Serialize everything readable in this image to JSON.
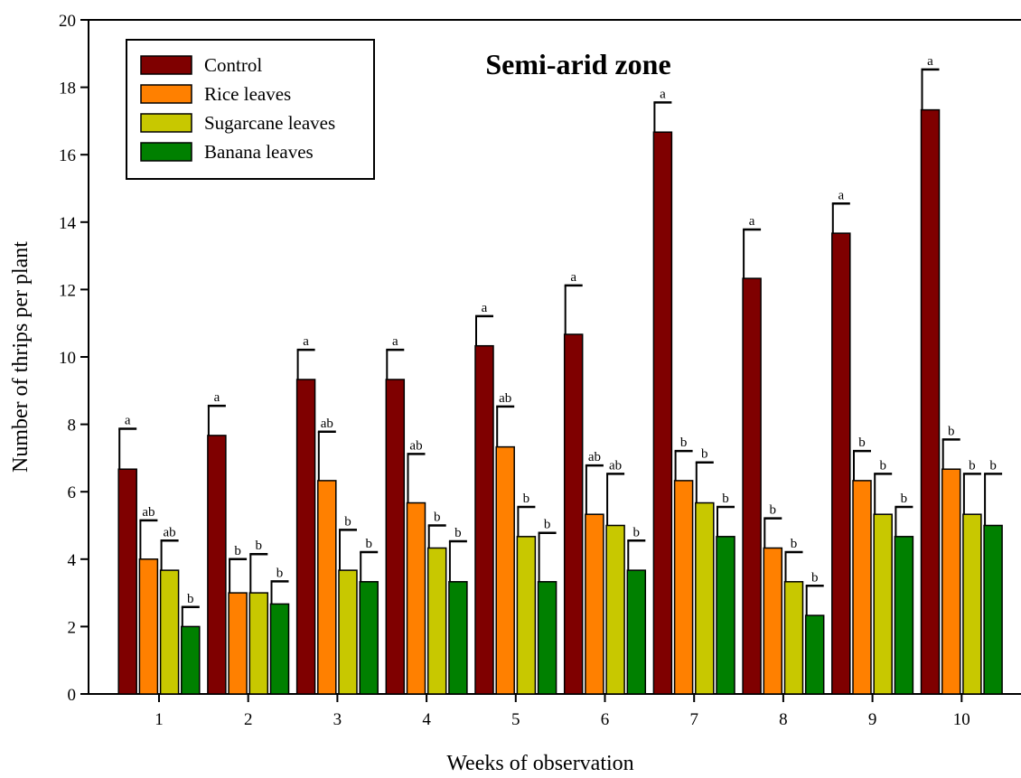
{
  "chart_data": {
    "type": "bar",
    "title": "Semi-arid zone",
    "xlabel": "Weeks of observation",
    "ylabel": "Number of thrips per plant",
    "ylim": [
      0,
      20
    ],
    "yticks": [
      0,
      2,
      4,
      6,
      8,
      10,
      12,
      14,
      16,
      18,
      20
    ],
    "categories": [
      "1",
      "2",
      "3",
      "4",
      "5",
      "6",
      "7",
      "8",
      "9",
      "10"
    ],
    "legend_position": "top-left",
    "grid": false,
    "series": [
      {
        "name": "Control",
        "color": "#7f0000",
        "values": [
          6.67,
          7.67,
          9.33,
          9.33,
          10.33,
          10.67,
          16.67,
          12.33,
          13.67,
          17.33
        ],
        "errors": [
          1.2,
          0.88,
          0.88,
          0.88,
          0.88,
          1.45,
          0.88,
          1.45,
          0.88,
          1.2
        ],
        "labels": [
          "a",
          "a",
          "a",
          "a",
          "a",
          "a",
          "a",
          "a",
          "a",
          "a"
        ]
      },
      {
        "name": "Rice leaves",
        "color": "#ff8000",
        "values": [
          4.0,
          3.0,
          6.33,
          5.67,
          7.33,
          5.33,
          6.33,
          4.33,
          6.33,
          6.67
        ],
        "errors": [
          1.15,
          1.0,
          1.45,
          1.45,
          1.2,
          1.45,
          0.88,
          0.88,
          0.88,
          0.88
        ],
        "labels": [
          "ab",
          "b",
          "ab",
          "ab",
          "ab",
          "ab",
          "b",
          "b",
          "b",
          "b"
        ]
      },
      {
        "name": "Sugarcane leaves",
        "color": "#c8c800",
        "values": [
          3.67,
          3.0,
          3.67,
          4.33,
          4.67,
          5.0,
          5.67,
          3.33,
          5.33,
          5.33
        ],
        "errors": [
          0.88,
          1.15,
          1.2,
          0.67,
          0.88,
          1.53,
          1.2,
          0.88,
          1.2,
          1.2
        ],
        "labels": [
          "ab",
          "b",
          "b",
          "b",
          "b",
          "ab",
          "b",
          "b",
          "b",
          "b"
        ]
      },
      {
        "name": "Banana leaves",
        "color": "#008000",
        "values": [
          2.0,
          2.67,
          3.33,
          3.33,
          3.33,
          3.67,
          4.67,
          2.33,
          4.67,
          5.0
        ],
        "errors": [
          0.58,
          0.67,
          0.88,
          1.2,
          1.45,
          0.88,
          0.88,
          0.88,
          0.88,
          1.53
        ],
        "labels": [
          "b",
          "b",
          "b",
          "b",
          "b",
          "b",
          "b",
          "b",
          "b",
          "b"
        ]
      }
    ]
  }
}
